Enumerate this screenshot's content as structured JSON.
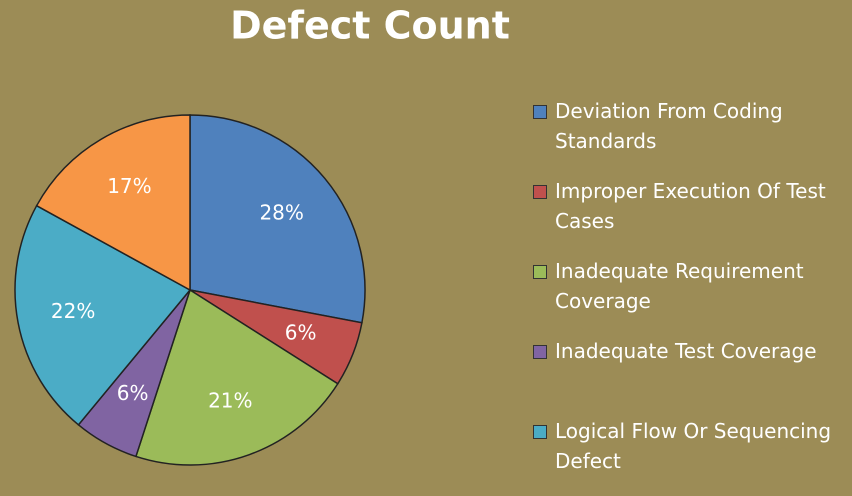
{
  "chart_data": {
    "type": "pie",
    "title": "Defect Count",
    "categories": [
      "Deviation From Coding Standards",
      "Improper Execution Of Test Cases",
      "Inadequate Requirement Coverage",
      "Inadequate Test Coverage",
      "Logical Flow Or Sequencing Defect",
      null
    ],
    "values": [
      28,
      6,
      21,
      6,
      22,
      17
    ],
    "value_labels": [
      "28%",
      "6%",
      "21%",
      "6%",
      "22%",
      "17%"
    ],
    "colors": [
      "#4f81bd",
      "#c0504d",
      "#9bbb59",
      "#8064a2",
      "#4bacc6",
      "#f79646"
    ],
    "legend": "right"
  }
}
